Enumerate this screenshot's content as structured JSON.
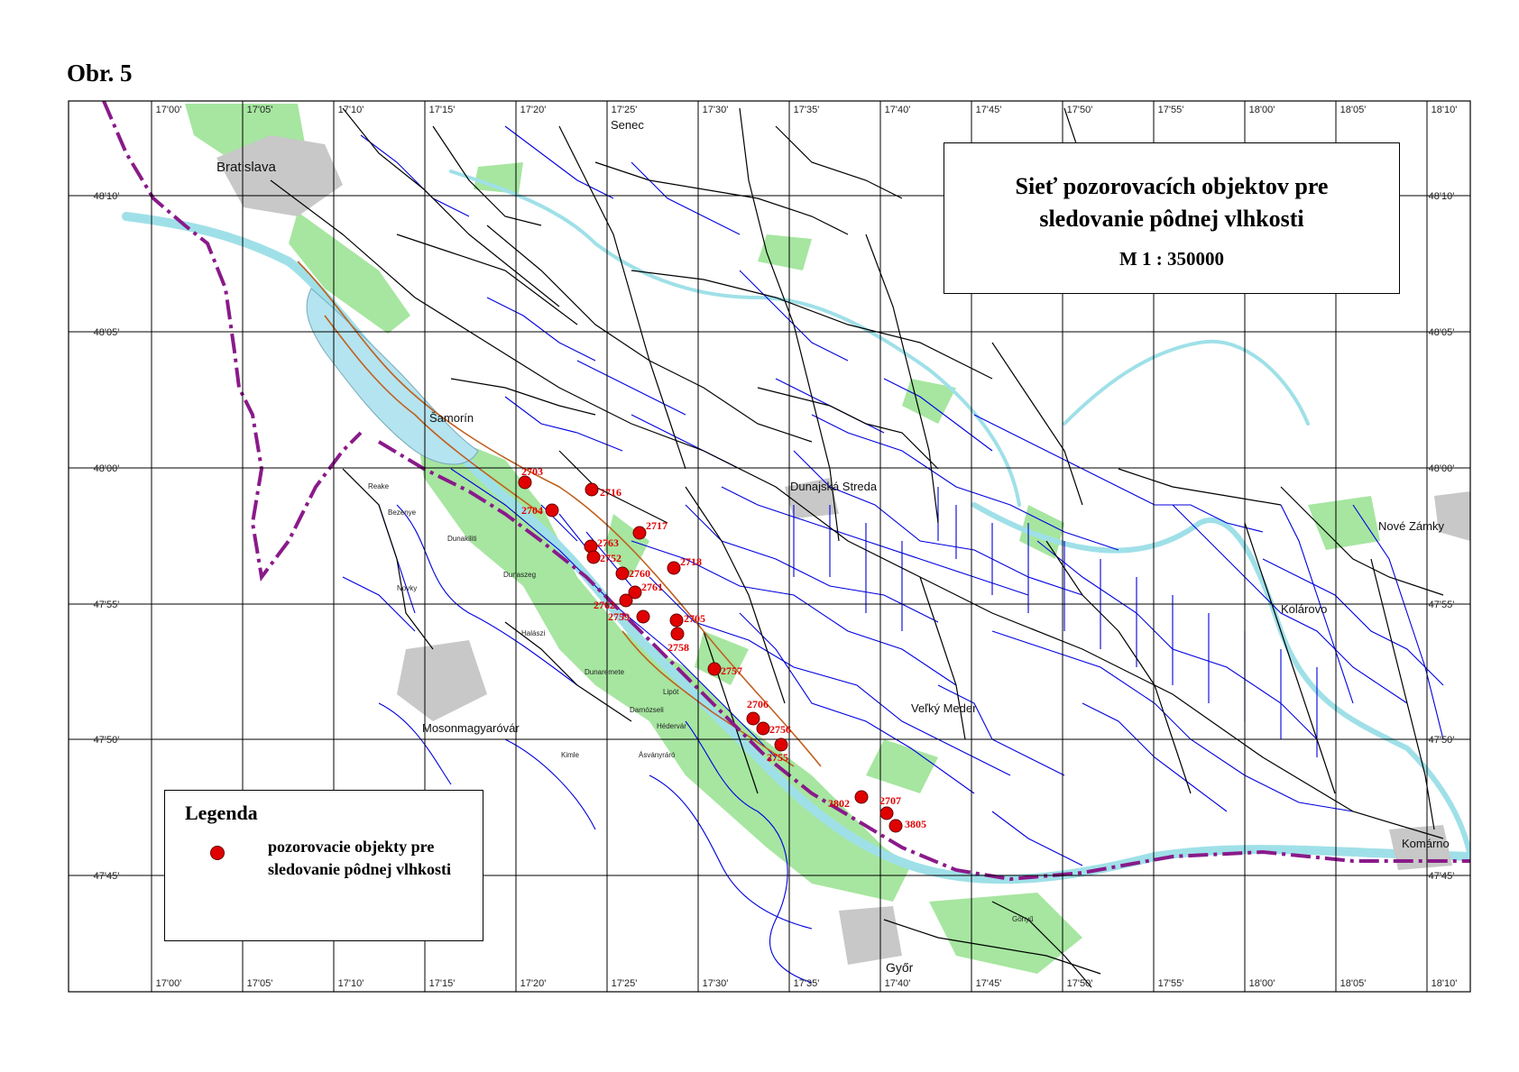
{
  "figure_label": "Obr. 5",
  "title": "Sieť pozorovacích objektov pre\nsledovanie pôdnej vlhkosti",
  "scale": "M 1 : 350000",
  "legend": {
    "title": "Legenda",
    "item_text": "pozorovacie objekty pre\nsledovanie pôdnej vlhkosti",
    "item_color": "#e00000"
  },
  "grid": {
    "longitude_labels": [
      "17'00'",
      "17'05'",
      "17'10'",
      "17'15'",
      "17'20'",
      "17'25'",
      "17'30'",
      "17'35'",
      "17'40'",
      "17'45'",
      "17'50'",
      "17'55'",
      "18'00'",
      "18'05'",
      "18'10'"
    ],
    "latitude_labels": [
      "48'10'",
      "48'05'",
      "48'00'",
      "47'55'",
      "47'50'",
      "47'45'"
    ]
  },
  "places": [
    "Bratislava",
    "Senec",
    "Šamorín",
    "Dunajská Streda",
    "Kolárovo",
    "Nové Zámky",
    "Komárno",
    "Veľký Meder",
    "Mosonmagyaróvár",
    "Győr",
    "Lipót",
    "Reake",
    "Bezenye",
    "Dunakiliti",
    "Kimle",
    "Hédervár",
    "Gönyű",
    "Halászi",
    "Darnózseli",
    "Dunaszeg",
    "Ásványráró",
    "Dunaremete",
    "Novky"
  ],
  "observation_points": [
    "2703",
    "2716",
    "2704",
    "2717",
    "2763",
    "2752",
    "2760",
    "2718",
    "2761",
    "2762",
    "2759",
    "2705",
    "2758",
    "2757",
    "2706",
    "2756",
    "2755",
    "3802",
    "2707",
    "3805"
  ],
  "colors": {
    "water": "#9fe0e8",
    "green": "#a6e6a0",
    "stream": "#0000e0",
    "road": "#000000",
    "border": "#8a1a8a",
    "point": "#e00000",
    "dam": "#c06020"
  }
}
